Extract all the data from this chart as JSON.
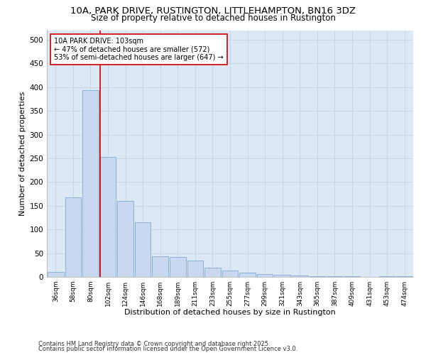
{
  "title_line1": "10A, PARK DRIVE, RUSTINGTON, LITTLEHAMPTON, BN16 3DZ",
  "title_line2": "Size of property relative to detached houses in Rustington",
  "xlabel": "Distribution of detached houses by size in Rustington",
  "ylabel": "Number of detached properties",
  "categories": [
    "36sqm",
    "58sqm",
    "80sqm",
    "102sqm",
    "124sqm",
    "146sqm",
    "168sqm",
    "189sqm",
    "211sqm",
    "233sqm",
    "255sqm",
    "277sqm",
    "299sqm",
    "321sqm",
    "343sqm",
    "365sqm",
    "387sqm",
    "409sqm",
    "431sqm",
    "453sqm",
    "474sqm"
  ],
  "values": [
    10,
    168,
    393,
    253,
    160,
    115,
    43,
    42,
    35,
    20,
    13,
    9,
    6,
    4,
    3,
    2,
    1,
    1,
    0,
    1,
    1
  ],
  "bar_color": "#c8d8ee",
  "bar_edge_color": "#8ab0d8",
  "bar_linewidth": 0.7,
  "vline_x_index": 3,
  "vline_color": "#cc0000",
  "annotation_text": "10A PARK DRIVE: 103sqm\n← 47% of detached houses are smaller (572)\n53% of semi-detached houses are larger (647) →",
  "annotation_box_color": "#ffffff",
  "annotation_box_edge_color": "#cc0000",
  "annotation_fontsize": 7,
  "ylim": [
    0,
    520
  ],
  "yticks": [
    0,
    50,
    100,
    150,
    200,
    250,
    300,
    350,
    400,
    450,
    500
  ],
  "grid_color": "#c8d8e8",
  "bg_color": "#dce8f4",
  "footer_line1": "Contains HM Land Registry data © Crown copyright and database right 2025.",
  "footer_line2": "Contains public sector information licensed under the Open Government Licence v3.0.",
  "footer_fontsize": 6,
  "title_fontsize1": 9.5,
  "title_fontsize2": 8.5,
  "axis_label_fontsize": 8,
  "tick_fontsize": 7.5,
  "xtick_fontsize": 6.5
}
